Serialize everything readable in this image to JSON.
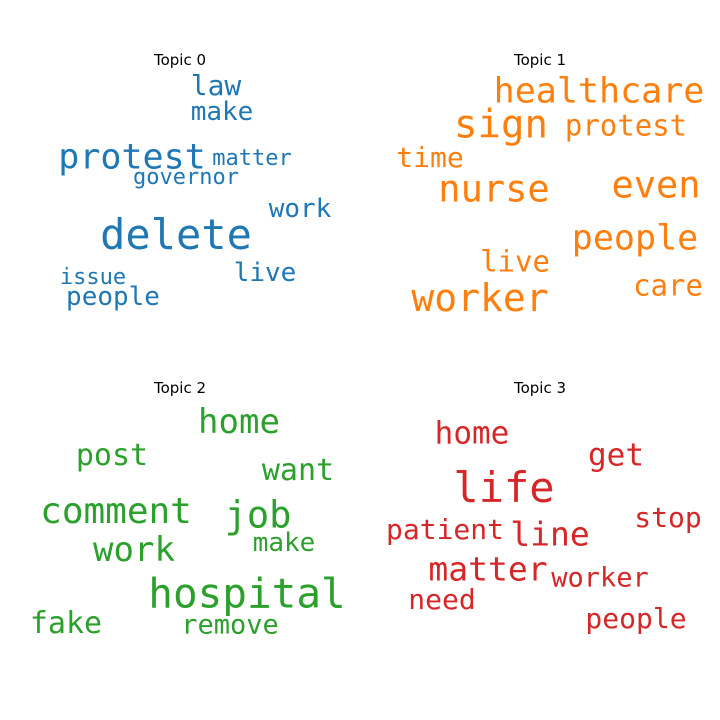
{
  "chart_data": [
    {
      "type": "wordcloud",
      "title": "Topic 0",
      "color": "#1f77b4",
      "words": [
        "delete",
        "protest",
        "law",
        "make",
        "matter",
        "governor",
        "work",
        "live",
        "issue",
        "people"
      ]
    },
    {
      "type": "wordcloud",
      "title": "Topic 1",
      "color": "#ff7f0e",
      "words": [
        "healthcare",
        "sign",
        "protest",
        "time",
        "nurse",
        "even",
        "people",
        "live",
        "worker",
        "care"
      ]
    },
    {
      "type": "wordcloud",
      "title": "Topic 2",
      "color": "#2ca02c",
      "words": [
        "home",
        "post",
        "want",
        "comment",
        "job",
        "make",
        "work",
        "hospital",
        "fake",
        "remove"
      ]
    },
    {
      "type": "wordcloud",
      "title": "Topic 3",
      "color": "#d62728",
      "words": [
        "home",
        "get",
        "life",
        "stop",
        "patient",
        "line",
        "matter",
        "worker",
        "need",
        "people"
      ]
    }
  ]
}
